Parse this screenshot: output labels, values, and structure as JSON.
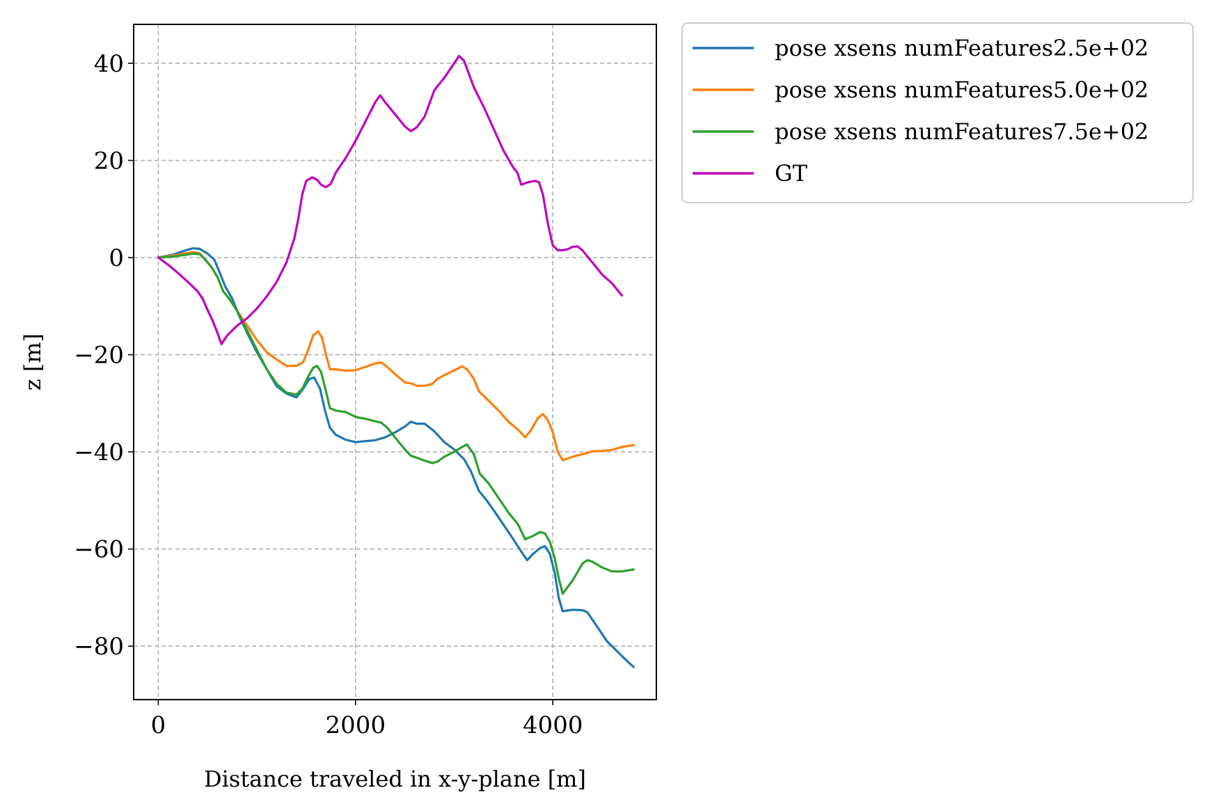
{
  "chart_data": {
    "type": "line",
    "title": "",
    "xlabel": "Distance traveled in x-y-plane [m]",
    "ylabel": "z [m]",
    "xlim": [
      -250,
      5050
    ],
    "ylim": [
      -91,
      48
    ],
    "xticks": [
      0,
      2000,
      4000
    ],
    "xtick_labels": [
      "0",
      "2000",
      "4000"
    ],
    "yticks": [
      40,
      20,
      0,
      -20,
      -40,
      -60,
      -80
    ],
    "ytick_labels": [
      "40",
      "20",
      "0",
      "−20",
      "−40",
      "−60",
      "−80"
    ],
    "grid": true,
    "legend_position": "outside-top-right",
    "series": [
      {
        "name": "pose xsens numFeatures2.5e+02",
        "color": "#1f77b4",
        "points": [
          [
            0,
            0
          ],
          [
            150,
            0.6
          ],
          [
            250,
            1.3
          ],
          [
            350,
            1.9
          ],
          [
            420,
            1.8
          ],
          [
            500,
            0.8
          ],
          [
            570,
            -0.5
          ],
          [
            620,
            -3
          ],
          [
            680,
            -6
          ],
          [
            750,
            -8.5
          ],
          [
            820,
            -12
          ],
          [
            900,
            -15.5
          ],
          [
            1000,
            -19.5
          ],
          [
            1100,
            -23
          ],
          [
            1200,
            -26.5
          ],
          [
            1300,
            -28
          ],
          [
            1400,
            -28.8
          ],
          [
            1470,
            -27
          ],
          [
            1530,
            -25
          ],
          [
            1580,
            -24.7
          ],
          [
            1640,
            -27
          ],
          [
            1690,
            -31.5
          ],
          [
            1740,
            -35
          ],
          [
            1800,
            -36.5
          ],
          [
            1900,
            -37.5
          ],
          [
            2000,
            -38
          ],
          [
            2100,
            -37.8
          ],
          [
            2200,
            -37.6
          ],
          [
            2300,
            -37
          ],
          [
            2400,
            -36
          ],
          [
            2500,
            -34.8
          ],
          [
            2560,
            -33.8
          ],
          [
            2620,
            -34.2
          ],
          [
            2700,
            -34.2
          ],
          [
            2800,
            -35.8
          ],
          [
            2900,
            -38
          ],
          [
            3000,
            -39.5
          ],
          [
            3100,
            -41.5
          ],
          [
            3170,
            -44
          ],
          [
            3250,
            -48
          ],
          [
            3330,
            -50
          ],
          [
            3400,
            -52
          ],
          [
            3500,
            -55
          ],
          [
            3600,
            -58
          ],
          [
            3680,
            -60.5
          ],
          [
            3740,
            -62.3
          ],
          [
            3800,
            -61
          ],
          [
            3870,
            -59.8
          ],
          [
            3920,
            -59.4
          ],
          [
            3970,
            -61
          ],
          [
            4020,
            -65
          ],
          [
            4060,
            -70
          ],
          [
            4100,
            -72.8
          ],
          [
            4200,
            -72.5
          ],
          [
            4300,
            -72.6
          ],
          [
            4350,
            -73
          ],
          [
            4450,
            -76
          ],
          [
            4550,
            -79
          ],
          [
            4650,
            -81
          ],
          [
            4750,
            -83
          ],
          [
            4820,
            -84.3
          ]
        ]
      },
      {
        "name": "pose xsens numFeatures5.0e+02",
        "color": "#ff7f0e",
        "points": [
          [
            0,
            0
          ],
          [
            150,
            0.4
          ],
          [
            250,
            0.8
          ],
          [
            350,
            1.1
          ],
          [
            420,
            0.9
          ],
          [
            480,
            -0.5
          ],
          [
            540,
            -2
          ],
          [
            600,
            -4
          ],
          [
            660,
            -7
          ],
          [
            720,
            -8.5
          ],
          [
            800,
            -11
          ],
          [
            900,
            -14
          ],
          [
            1000,
            -17
          ],
          [
            1100,
            -19.5
          ],
          [
            1200,
            -21
          ],
          [
            1300,
            -22.3
          ],
          [
            1400,
            -22.3
          ],
          [
            1470,
            -21.5
          ],
          [
            1520,
            -19
          ],
          [
            1570,
            -16
          ],
          [
            1620,
            -15.2
          ],
          [
            1660,
            -16.5
          ],
          [
            1700,
            -20
          ],
          [
            1740,
            -23
          ],
          [
            1800,
            -23
          ],
          [
            1900,
            -23.3
          ],
          [
            2000,
            -23.2
          ],
          [
            2100,
            -22.5
          ],
          [
            2200,
            -21.8
          ],
          [
            2260,
            -21.6
          ],
          [
            2320,
            -22.5
          ],
          [
            2400,
            -24
          ],
          [
            2500,
            -25.7
          ],
          [
            2580,
            -26
          ],
          [
            2620,
            -26.4
          ],
          [
            2700,
            -26.4
          ],
          [
            2780,
            -26
          ],
          [
            2830,
            -25
          ],
          [
            2900,
            -24.2
          ],
          [
            3000,
            -23.2
          ],
          [
            3080,
            -22.4
          ],
          [
            3130,
            -23
          ],
          [
            3200,
            -25
          ],
          [
            3250,
            -27.5
          ],
          [
            3350,
            -29.5
          ],
          [
            3450,
            -31.5
          ],
          [
            3550,
            -33.8
          ],
          [
            3650,
            -35.5
          ],
          [
            3720,
            -37
          ],
          [
            3780,
            -35.5
          ],
          [
            3850,
            -33
          ],
          [
            3900,
            -32.2
          ],
          [
            3950,
            -33.5
          ],
          [
            4000,
            -36
          ],
          [
            4050,
            -40
          ],
          [
            4100,
            -41.7
          ],
          [
            4200,
            -41
          ],
          [
            4300,
            -40.5
          ],
          [
            4400,
            -39.9
          ],
          [
            4500,
            -39.8
          ],
          [
            4600,
            -39.6
          ],
          [
            4700,
            -39
          ],
          [
            4820,
            -38.6
          ]
        ]
      },
      {
        "name": "pose xsens numFeatures7.5e+02",
        "color": "#2ca02c",
        "points": [
          [
            0,
            0
          ],
          [
            150,
            0.2
          ],
          [
            250,
            0.5
          ],
          [
            350,
            0.8
          ],
          [
            420,
            0.7
          ],
          [
            480,
            -0.5
          ],
          [
            540,
            -2
          ],
          [
            600,
            -4
          ],
          [
            660,
            -7
          ],
          [
            720,
            -8.5
          ],
          [
            800,
            -11
          ],
          [
            900,
            -15
          ],
          [
            1000,
            -19
          ],
          [
            1100,
            -23
          ],
          [
            1200,
            -26
          ],
          [
            1300,
            -27.8
          ],
          [
            1400,
            -28.2
          ],
          [
            1460,
            -27
          ],
          [
            1520,
            -24.5
          ],
          [
            1570,
            -22.7
          ],
          [
            1610,
            -22.3
          ],
          [
            1650,
            -23.5
          ],
          [
            1700,
            -27.5
          ],
          [
            1740,
            -31
          ],
          [
            1800,
            -31.5
          ],
          [
            1900,
            -31.8
          ],
          [
            2000,
            -32.8
          ],
          [
            2100,
            -33.2
          ],
          [
            2200,
            -33.7
          ],
          [
            2260,
            -34
          ],
          [
            2320,
            -35
          ],
          [
            2400,
            -37
          ],
          [
            2500,
            -39.5
          ],
          [
            2560,
            -40.8
          ],
          [
            2620,
            -41.2
          ],
          [
            2700,
            -41.8
          ],
          [
            2780,
            -42.3
          ],
          [
            2830,
            -42
          ],
          [
            2900,
            -41
          ],
          [
            3000,
            -40
          ],
          [
            3080,
            -39
          ],
          [
            3130,
            -38.5
          ],
          [
            3200,
            -40.5
          ],
          [
            3260,
            -44.5
          ],
          [
            3350,
            -46.5
          ],
          [
            3450,
            -49.5
          ],
          [
            3550,
            -52.5
          ],
          [
            3650,
            -55
          ],
          [
            3720,
            -58
          ],
          [
            3800,
            -57.3
          ],
          [
            3870,
            -56.5
          ],
          [
            3920,
            -56.8
          ],
          [
            3970,
            -58.5
          ],
          [
            4020,
            -62
          ],
          [
            4060,
            -66
          ],
          [
            4100,
            -69.2
          ],
          [
            4200,
            -66.5
          ],
          [
            4300,
            -63
          ],
          [
            4350,
            -62.3
          ],
          [
            4400,
            -62.6
          ],
          [
            4500,
            -63.8
          ],
          [
            4600,
            -64.6
          ],
          [
            4700,
            -64.6
          ],
          [
            4820,
            -64.2
          ]
        ]
      },
      {
        "name": "GT",
        "color": "#bf00bf",
        "points": [
          [
            0,
            0
          ],
          [
            100,
            -1.5
          ],
          [
            200,
            -3.2
          ],
          [
            300,
            -5
          ],
          [
            400,
            -7
          ],
          [
            450,
            -8.5
          ],
          [
            500,
            -10.8
          ],
          [
            550,
            -13
          ],
          [
            600,
            -15.5
          ],
          [
            640,
            -17.8
          ],
          [
            700,
            -16
          ],
          [
            800,
            -14
          ],
          [
            900,
            -12.5
          ],
          [
            1000,
            -10.5
          ],
          [
            1100,
            -8
          ],
          [
            1200,
            -5
          ],
          [
            1300,
            -1
          ],
          [
            1380,
            4
          ],
          [
            1420,
            8
          ],
          [
            1460,
            13
          ],
          [
            1500,
            15.8
          ],
          [
            1560,
            16.5
          ],
          [
            1610,
            16
          ],
          [
            1650,
            15
          ],
          [
            1700,
            14.5
          ],
          [
            1750,
            15.2
          ],
          [
            1800,
            17.5
          ],
          [
            1900,
            20.5
          ],
          [
            2000,
            24
          ],
          [
            2100,
            28
          ],
          [
            2200,
            32
          ],
          [
            2250,
            33.4
          ],
          [
            2300,
            32
          ],
          [
            2400,
            29.5
          ],
          [
            2500,
            27
          ],
          [
            2560,
            26
          ],
          [
            2620,
            26.8
          ],
          [
            2700,
            29
          ],
          [
            2800,
            34.5
          ],
          [
            2900,
            37
          ],
          [
            3000,
            40
          ],
          [
            3050,
            41.5
          ],
          [
            3100,
            40.5
          ],
          [
            3200,
            35
          ],
          [
            3300,
            31
          ],
          [
            3400,
            26.5
          ],
          [
            3500,
            22
          ],
          [
            3600,
            18.5
          ],
          [
            3640,
            17.5
          ],
          [
            3680,
            15
          ],
          [
            3750,
            15.5
          ],
          [
            3820,
            15.8
          ],
          [
            3860,
            15.5
          ],
          [
            3900,
            13
          ],
          [
            3950,
            7
          ],
          [
            4000,
            2.5
          ],
          [
            4050,
            1.5
          ],
          [
            4100,
            1.5
          ],
          [
            4150,
            1.7
          ],
          [
            4200,
            2.2
          ],
          [
            4250,
            2.3
          ],
          [
            4300,
            1.5
          ],
          [
            4400,
            -1
          ],
          [
            4500,
            -3.5
          ],
          [
            4600,
            -5.3
          ],
          [
            4700,
            -7.8
          ]
        ]
      }
    ]
  }
}
